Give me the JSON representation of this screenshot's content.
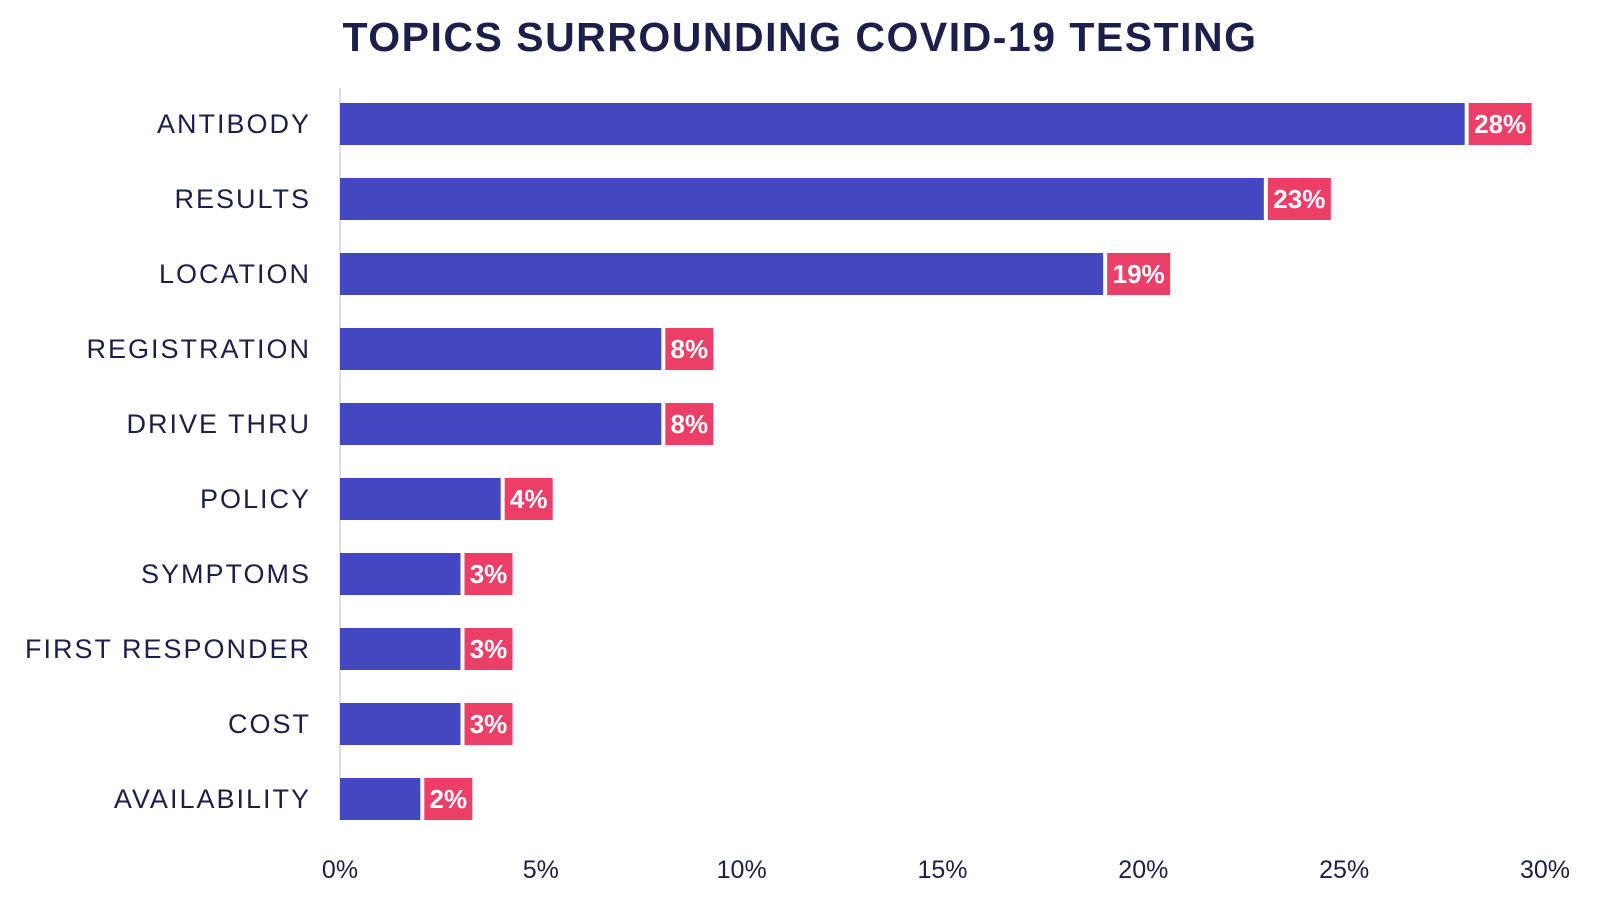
{
  "chart_data": {
    "type": "bar",
    "orientation": "horizontal",
    "title": "TOPICS SURROUNDING COVID-19 TESTING",
    "categories": [
      "ANTIBODY",
      "RESULTS",
      "LOCATION",
      "REGISTRATION",
      "DRIVE THRU",
      "POLICY",
      "SYMPTOMS",
      "FIRST RESPONDER",
      "COST",
      "AVAILABILITY"
    ],
    "values": [
      28,
      23,
      19,
      8,
      8,
      4,
      3,
      3,
      3,
      2
    ],
    "value_labels": [
      "28%",
      "23%",
      "19%",
      "8%",
      "8%",
      "4%",
      "3%",
      "3%",
      "3%",
      "2%"
    ],
    "xlim": [
      0,
      30
    ],
    "xticks": [
      0,
      5,
      10,
      15,
      20,
      25,
      30
    ],
    "xtick_labels": [
      "0%",
      "5%",
      "10%",
      "15%",
      "20%",
      "25%",
      "30%"
    ],
    "xlabel": "",
    "ylabel": "",
    "grid": false,
    "legend": "none",
    "colors": {
      "bar": "#4348c0",
      "label_bg": "#ec3f68",
      "text": "#1b1f4a",
      "axis": "#b8bbd6"
    }
  }
}
